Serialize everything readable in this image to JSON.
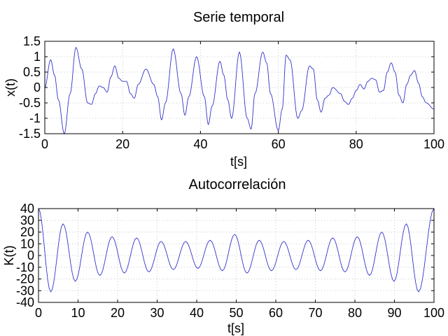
{
  "chart_data": [
    {
      "type": "line",
      "title": "Serie temporal",
      "xlabel": "t[s]",
      "ylabel": "x(t)",
      "xlim": [
        0,
        100
      ],
      "ylim": [
        -1.5,
        1.5
      ],
      "xticks": [
        0,
        20,
        40,
        60,
        80,
        100
      ],
      "xtick_labels": [
        "0",
        "20",
        "40",
        "60",
        "80",
        "100"
      ],
      "yticks": [
        -1.5,
        -1,
        -0.5,
        0,
        0.5,
        1,
        1.5
      ],
      "ytick_labels": [
        "-1.5",
        "-1",
        "-0.5",
        "0",
        "0.5",
        "1",
        "1.5"
      ],
      "grid": true,
      "series": [
        {
          "color": "#3333cc",
          "x": [
            0,
            1.5,
            2.5,
            3.5,
            5,
            6.5,
            8,
            9.5,
            11,
            12,
            13,
            14,
            15,
            16,
            17,
            18,
            19,
            20,
            21,
            22,
            23,
            24,
            26,
            28,
            29,
            30,
            31,
            33,
            35,
            36,
            37,
            39,
            41,
            42,
            43,
            45,
            46,
            47,
            48,
            50,
            52,
            53,
            54,
            56,
            57,
            58,
            60,
            61,
            62,
            63,
            65,
            66,
            68,
            69,
            70,
            71,
            72,
            73,
            74,
            76,
            77,
            78,
            79,
            80,
            81,
            82,
            83,
            84,
            85,
            86,
            87,
            88,
            89,
            90,
            91,
            92,
            93,
            94,
            95,
            96,
            97,
            98,
            100
          ],
          "y": [
            0,
            0.9,
            0.4,
            -0.4,
            -1.5,
            -0.2,
            1.3,
            0.6,
            -0.5,
            -0.55,
            -0.2,
            0.05,
            0.0,
            -0.15,
            0.35,
            0.7,
            0.3,
            0.2,
            0.2,
            -0.2,
            -0.35,
            0.1,
            0.6,
            0.1,
            -0.3,
            -1.05,
            -0.5,
            1.25,
            -0.2,
            -0.9,
            -0.3,
            1.0,
            -0.3,
            -1.2,
            -0.6,
            0.85,
            0.4,
            -0.4,
            -1.0,
            1.15,
            -1.0,
            -1.35,
            -0.2,
            1.15,
            0.8,
            -0.2,
            -1.4,
            -0.7,
            1.05,
            0.9,
            -1.0,
            -0.75,
            0.7,
            0.6,
            -0.4,
            -0.8,
            -0.35,
            -0.25,
            0.0,
            -0.2,
            -0.45,
            -0.55,
            -0.35,
            -0.1,
            0.1,
            -0.05,
            0.2,
            0.3,
            0.25,
            -0.15,
            -0.1,
            0.5,
            0.8,
            0.5,
            -0.25,
            -0.5,
            0.1,
            0.4,
            0.55,
            0.15,
            -0.3,
            -0.5,
            -0.7
          ]
        }
      ]
    },
    {
      "type": "line",
      "title": "Autocorrelación",
      "xlabel": "t[s]",
      "ylabel": "K(t)",
      "xlim": [
        0,
        100
      ],
      "ylim": [
        -40,
        40
      ],
      "xticks": [
        0,
        10,
        20,
        30,
        40,
        50,
        60,
        70,
        80,
        90,
        100
      ],
      "xtick_labels": [
        "0",
        "10",
        "20",
        "30",
        "40",
        "50",
        "60",
        "70",
        "80",
        "90",
        "100"
      ],
      "yticks": [
        -40,
        -30,
        -20,
        -10,
        0,
        10,
        20,
        30,
        40
      ],
      "ytick_labels": [
        "-40",
        "-30",
        "-20",
        "-10",
        "0",
        "10",
        "20",
        "30",
        "40"
      ],
      "grid": true,
      "series": [
        {
          "color": "#3333cc",
          "x": [
            0,
            3.1,
            6.2,
            9.3,
            12.4,
            15.5,
            18.6,
            21.7,
            24.8,
            27.9,
            31.0,
            34.1,
            37.2,
            40.3,
            43.4,
            46.5,
            49.6,
            52.7,
            55.8,
            58.9,
            62.0,
            65.1,
            68.2,
            71.3,
            74.4,
            77.5,
            80.6,
            83.7,
            86.8,
            89.9,
            93.0,
            96.1,
            100
          ],
          "y": [
            40,
            -31,
            27,
            -22,
            20,
            -17,
            16,
            -15,
            15,
            -14,
            12,
            -12,
            12,
            -11,
            13,
            -13,
            18,
            -15,
            13,
            -13,
            12,
            -12,
            13,
            -13,
            15,
            -14,
            16,
            -17,
            20,
            -22,
            27,
            -31,
            40
          ]
        }
      ]
    }
  ]
}
